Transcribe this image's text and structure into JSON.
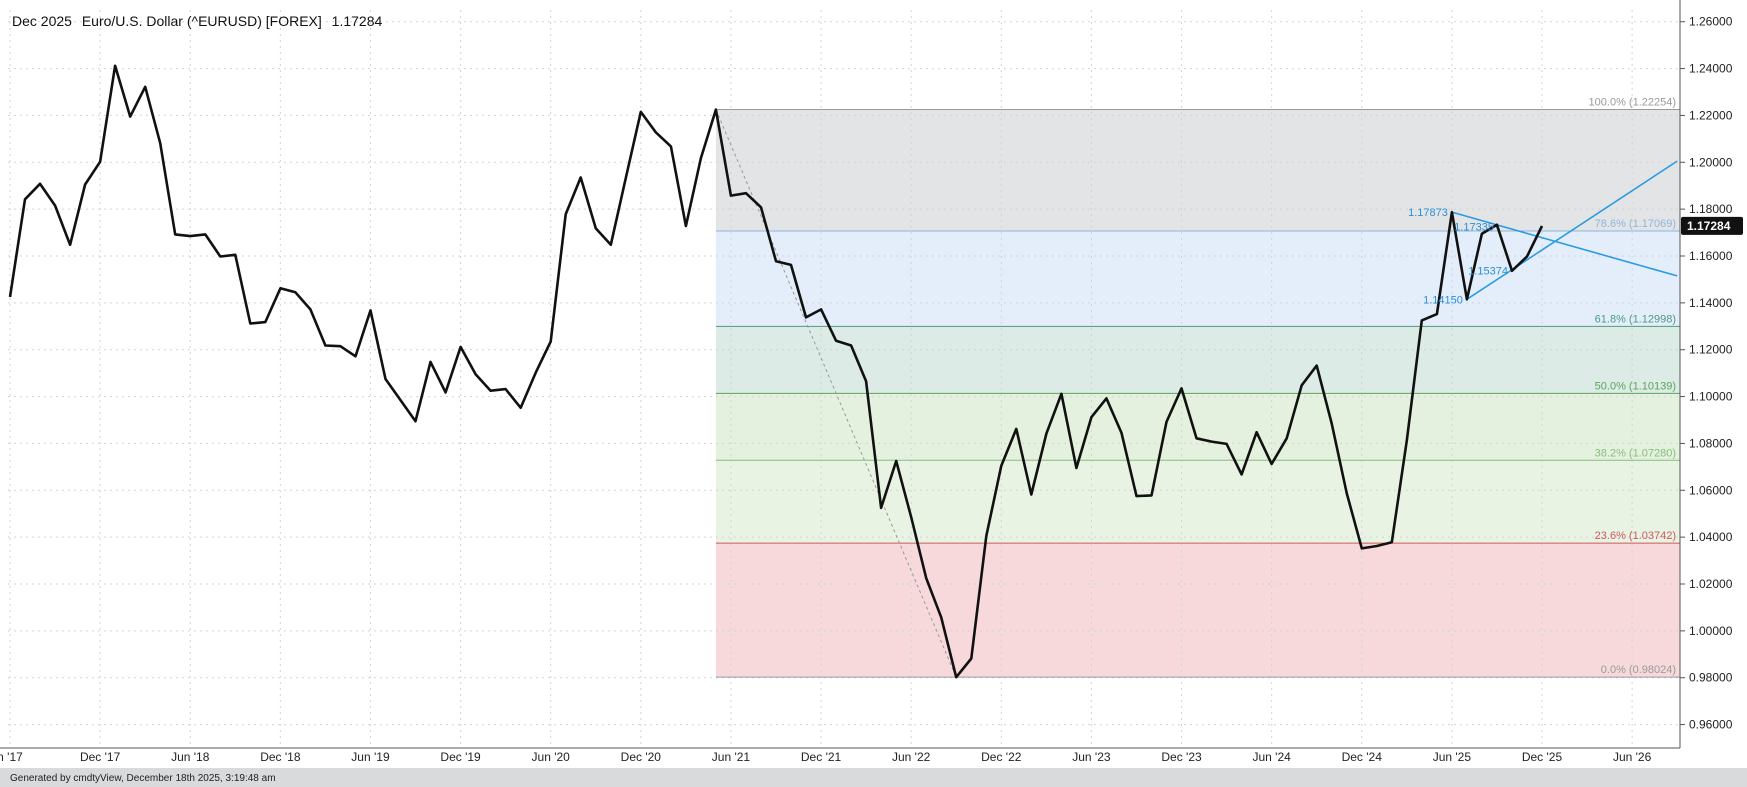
{
  "header": {
    "contract": "Dec 2025",
    "name": "Euro/U.S. Dollar (^EURUSD) [FOREX]",
    "last": "1.17284"
  },
  "footer": {
    "text": "Generated by cmdtyView, December 18th 2025, 3:19:48 am"
  },
  "colors": {
    "price_line": "#111111",
    "trend_lines": "#2a9be0",
    "fib_100_786": "#e3e4e6",
    "fib_786_618": "#e3eefa",
    "fib_618_50": "#dcebe6",
    "fib_50_382": "#e4f1de",
    "fib_382_236": "#e9f3e4",
    "fib_236_0": "#f7d9db"
  },
  "chart_data": {
    "type": "line",
    "frequency": "monthly",
    "ylim": [
      0.95,
      1.265
    ],
    "y_ticks": [
      "1.26000",
      "1.24000",
      "1.22000",
      "1.20000",
      "1.18000",
      "1.16000",
      "1.14000",
      "1.12000",
      "1.10000",
      "1.08000",
      "1.06000",
      "1.04000",
      "1.02000",
      "1.00000",
      "0.98000",
      "0.96000"
    ],
    "x_ticks": [
      {
        "label": "n '17",
        "date": "2017-06"
      },
      {
        "label": "Dec '17",
        "date": "2017-12"
      },
      {
        "label": "Jun '18",
        "date": "2018-06"
      },
      {
        "label": "Dec '18",
        "date": "2018-12"
      },
      {
        "label": "Jun '19",
        "date": "2019-06"
      },
      {
        "label": "Dec '19",
        "date": "2019-12"
      },
      {
        "label": "Jun '20",
        "date": "2020-06"
      },
      {
        "label": "Dec '20",
        "date": "2020-12"
      },
      {
        "label": "Jun '21",
        "date": "2021-06"
      },
      {
        "label": "Dec '21",
        "date": "2021-12"
      },
      {
        "label": "Jun '22",
        "date": "2022-06"
      },
      {
        "label": "Dec '22",
        "date": "2022-12"
      },
      {
        "label": "Jun '23",
        "date": "2023-06"
      },
      {
        "label": "Dec '23",
        "date": "2023-12"
      },
      {
        "label": "Jun '24",
        "date": "2024-06"
      },
      {
        "label": "Dec '24",
        "date": "2024-12"
      },
      {
        "label": "Jun '25",
        "date": "2025-06"
      },
      {
        "label": "Dec '25",
        "date": "2025-12"
      },
      {
        "label": "Jun '26",
        "date": "2026-06"
      }
    ],
    "grid": true,
    "series": [
      {
        "start": "2017-06",
        "values": [
          1.1425,
          1.1842,
          1.1908,
          1.1815,
          1.1648,
          1.1905,
          1.2002,
          1.2412,
          1.2195,
          1.2322,
          1.2082,
          1.1692,
          1.1685,
          1.1692,
          1.1598,
          1.1605,
          1.1312,
          1.1318,
          1.1462,
          1.1445,
          1.1372,
          1.1218,
          1.1215,
          1.1172,
          1.1368,
          1.1075,
          1.0985,
          1.0895,
          1.1148,
          1.1018,
          1.1212,
          1.1095,
          1.1025,
          1.1032,
          1.0952,
          1.1102,
          1.1235,
          1.1778,
          1.1935,
          1.1718,
          1.1648,
          1.1933,
          1.2215,
          1.2128,
          1.2068,
          1.1728,
          1.2018,
          1.2225,
          1.1858,
          1.1868,
          1.1808,
          1.1578,
          1.1562,
          1.1338,
          1.1372,
          1.1238,
          1.1218,
          1.1065,
          1.0525,
          1.0725,
          1.0485,
          1.0225,
          1.0058,
          0.9802,
          0.9882,
          1.0405,
          1.0705,
          1.0862,
          1.0582,
          1.0842,
          1.1012,
          1.0695,
          1.0912,
          1.0992,
          1.0845,
          1.0575,
          1.0578,
          1.0892,
          1.1035,
          1.0822,
          1.0808,
          1.0798,
          1.0668,
          1.0848,
          1.0712,
          1.0822,
          1.1048,
          1.1132,
          1.0885,
          1.0588,
          1.0352,
          1.0362,
          1.0378,
          1.0812,
          1.1325,
          1.1352,
          1.1787,
          1.1415,
          1.1695,
          1.1733,
          1.1537,
          1.1598,
          1.1728
        ]
      }
    ],
    "fibonacci": {
      "high": 1.22254,
      "low": 0.98024,
      "start_date": "2021-05",
      "levels": [
        {
          "label": "100.0% (1.22254)",
          "value": 1.22254,
          "color": "#9a9a9a"
        },
        {
          "label": "78.6% (1.17069)",
          "value": 1.17069,
          "color": "#8db6e0"
        },
        {
          "label": "61.8% (1.12998)",
          "value": 1.12998,
          "color": "#4e9a7e"
        },
        {
          "label": "50.0% (1.10139)",
          "value": 1.10139,
          "color": "#5aa55a"
        },
        {
          "label": "38.2% (1.07280)",
          "value": 1.0728,
          "color": "#86c07a"
        },
        {
          "label": "23.6% (1.03742)",
          "value": 1.03742,
          "color": "#cc5a5a"
        },
        {
          "label": "0.0% (0.98024)",
          "value": 0.98024,
          "color": "#9a9a9a"
        }
      ]
    },
    "annotations": [
      {
        "label": "1.17873",
        "date": "2025-06",
        "value": 1.17873
      },
      {
        "label": "1.17335",
        "date": "2025-09",
        "value": 1.17335
      },
      {
        "label": "1.15374",
        "date": "2025-10",
        "value": 1.15374
      },
      {
        "label": "1.14150",
        "date": "2025-07",
        "value": 1.1415
      }
    ],
    "trend_lines": [
      {
        "from": {
          "date": "2025-06",
          "value": 1.17873
        },
        "to": {
          "date": "2026-09",
          "value": 1.1515
        }
      },
      {
        "from": {
          "date": "2025-07",
          "value": 1.1415
        },
        "to": {
          "date": "2026-09",
          "value": 1.2005
        }
      }
    ],
    "current_value": {
      "label": "1.17284",
      "value": 1.17284
    }
  }
}
